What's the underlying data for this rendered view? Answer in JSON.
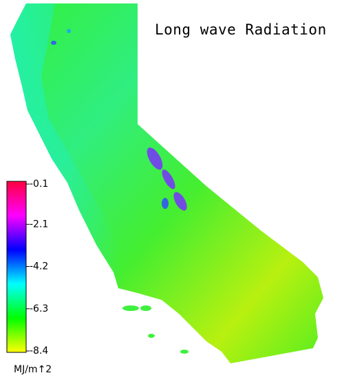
{
  "title": "Long wave Radiation",
  "colorbar": {
    "lim": [
      -8.4,
      -0.1
    ],
    "ticks": [
      -0.1,
      -2.1,
      -4.2,
      -6.3,
      -8.4
    ],
    "unit": "MJ/m↑2",
    "colors": [
      "#ffff00",
      "#00ff00",
      "#00ffff",
      "#0000ff",
      "#ff00ff",
      "#ff0040"
    ]
  }
}
